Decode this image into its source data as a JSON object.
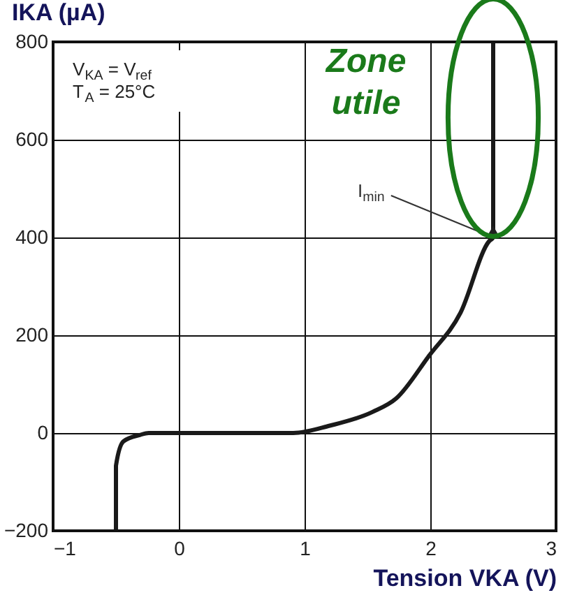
{
  "chart_data": {
    "type": "line",
    "ylabel": "IKA (µA)",
    "xlabel": "Tension VKA (V)",
    "x": [
      -0.5,
      -0.5,
      -0.44,
      -0.31,
      -0.24,
      0.5,
      0.91,
      1.2,
      1.54,
      1.73,
      1.99,
      2.24,
      2.47,
      2.5,
      2.5
    ],
    "series": [
      {
        "color": "#1a1a1a",
        "values": [
          -200,
          -67,
          -17,
          -4,
          0,
          0,
          0,
          15,
          43,
          71,
          158,
          246,
          393,
          400,
          800
        ]
      }
    ],
    "xlim": [
      -1,
      3
    ],
    "xticks": [
      -1,
      0,
      1,
      2,
      3
    ],
    "ylim": [
      -200,
      800
    ],
    "yticks": [
      -200,
      0,
      200,
      400,
      600,
      800
    ],
    "grid": true,
    "marker": "none",
    "line_style": "solid",
    "annotations": [
      "V$_{KA}$ = V$_{ref}$",
      "T$_{A}$ = 25°C",
      {
        "text": "I$_{min}$",
        "x": 2.5,
        "y": 400
      },
      {
        "text": "Zone utile",
        "x": 2.5,
        "y": 645
      }
    ]
  }
}
